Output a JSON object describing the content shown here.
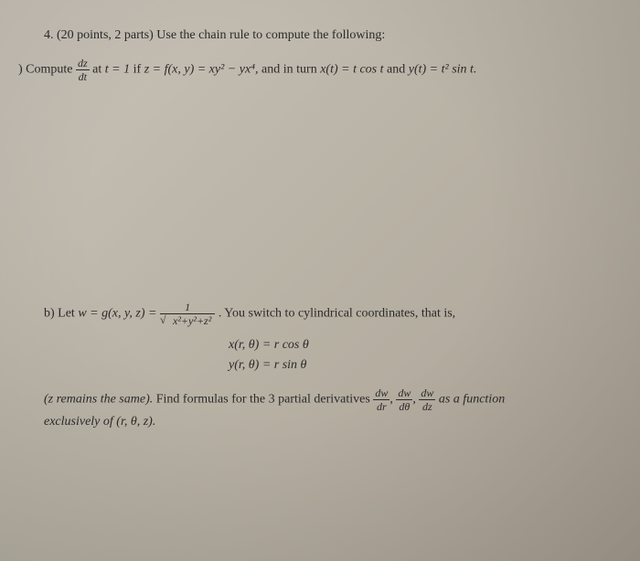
{
  "problem": {
    "number": "4.",
    "points": "(20 points, 2 parts)",
    "instruction": "Use the chain rule to compute the following:"
  },
  "partA": {
    "label": ") Compute",
    "deriv_num": "dz",
    "deriv_den": "dt",
    "at_text": "at",
    "t_eq": "t = 1",
    "if_text": "if",
    "z_def": "z = f(x, y) = xy² − yx⁴,",
    "and_text": "and in turn",
    "x_def": "x(t) = t cos t",
    "and2": "and",
    "y_def": "y(t) = t² sin t."
  },
  "partB": {
    "label": "b) Let",
    "w_def": "w = g(x, y, z) =",
    "frac_num": "1",
    "frac_den_inner": "x²+y²+z²",
    "switch_text": ". You switch to cylindrical coordinates, that is,",
    "eq1_lhs": "x(r, θ)",
    "eq1_rhs": "= r cos θ",
    "eq2_lhs": "y(r, θ)",
    "eq2_rhs": "= r sin θ"
  },
  "footer": {
    "z_remains": "(z remains the same).",
    "find_text": "Find formulas for the 3 partial derivatives",
    "p1_num": "dw",
    "p1_den": "dr",
    "comma1": ",",
    "p2_num": "dw",
    "p2_den": "dθ",
    "comma2": ",",
    "p3_num": "dw",
    "p3_den": "dz",
    "as_text": "as a function",
    "excl": "exclusively of (r, θ, z)."
  }
}
